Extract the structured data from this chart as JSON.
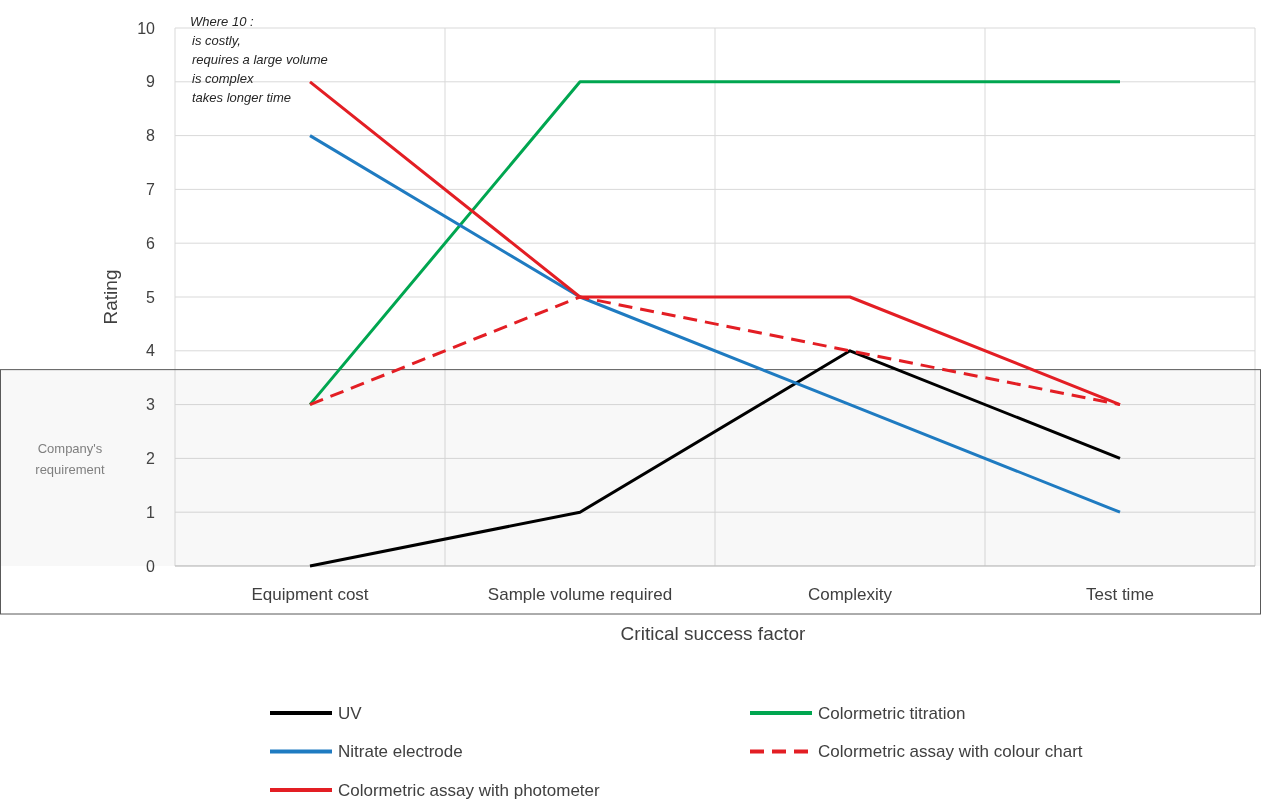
{
  "chart_data": {
    "type": "line",
    "xlabel": "Critical success factor",
    "ylabel": "Rating",
    "categories": [
      "Equipment cost",
      "Sample volume required",
      "Complexity",
      "Test time"
    ],
    "series": [
      {
        "name": "UV",
        "color": "#000000",
        "values": [
          0,
          1,
          4,
          2
        ]
      },
      {
        "name": "Colormetric titration",
        "color": "#00a650",
        "values": [
          3,
          9,
          9,
          9
        ]
      },
      {
        "name": "Nitrate electrode",
        "color": "#1f7bc1",
        "values": [
          8,
          5,
          3,
          1
        ]
      },
      {
        "name": "Colormetric assay with colour chart",
        "color": "#e31e24",
        "values": [
          3,
          5,
          4,
          3
        ],
        "line_style": "dashed"
      },
      {
        "name": "Colormetric assay with photometer",
        "color": "#e31e24",
        "values": [
          9,
          5,
          5,
          3
        ]
      }
    ],
    "ylim": [
      0,
      10
    ],
    "yticks": [
      0,
      1,
      2,
      3,
      4,
      5,
      6,
      7,
      8,
      9,
      10
    ],
    "grid": true,
    "legend": "bottom",
    "line_style": "solid",
    "bands": [
      {
        "axis": "y",
        "from": 0,
        "to": 3.65,
        "label": "Company's requirement"
      }
    ],
    "annotations": [
      "Where 10 :\nis costly,\nrequires a large volume\nis complex\ntakes longer time"
    ]
  }
}
